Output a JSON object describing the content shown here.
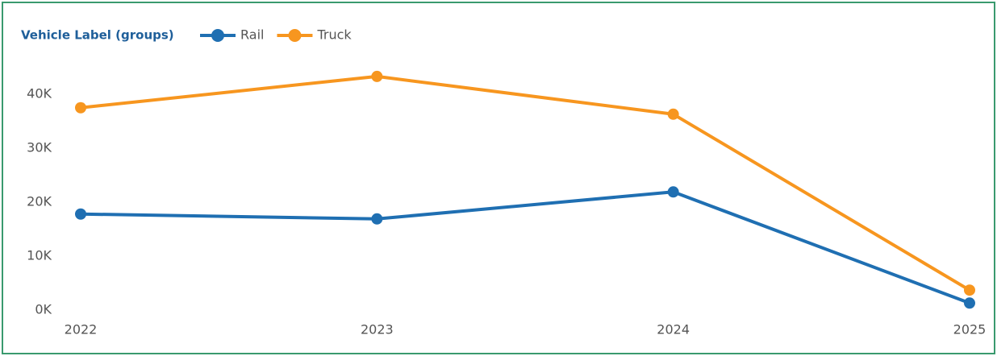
{
  "chart_data": {
    "type": "line",
    "legend_title": "Vehicle Label (groups)",
    "legend": "top-left",
    "grid": false,
    "categories": [
      "2022",
      "2023",
      "2024",
      "2025"
    ],
    "series": [
      {
        "name": "Rail",
        "color": "#1f6fb2",
        "values": [
          17800,
          16900,
          21900,
          1300
        ]
      },
      {
        "name": "Truck",
        "color": "#f7961f",
        "values": [
          37500,
          43300,
          36300,
          3700
        ]
      }
    ],
    "ylim": [
      0,
      45000
    ],
    "yticks": [
      {
        "value": 0,
        "label": "0K"
      },
      {
        "value": 10000,
        "label": "10K"
      },
      {
        "value": 20000,
        "label": "20K"
      },
      {
        "value": 30000,
        "label": "30K"
      },
      {
        "value": 40000,
        "label": "40K"
      }
    ]
  }
}
